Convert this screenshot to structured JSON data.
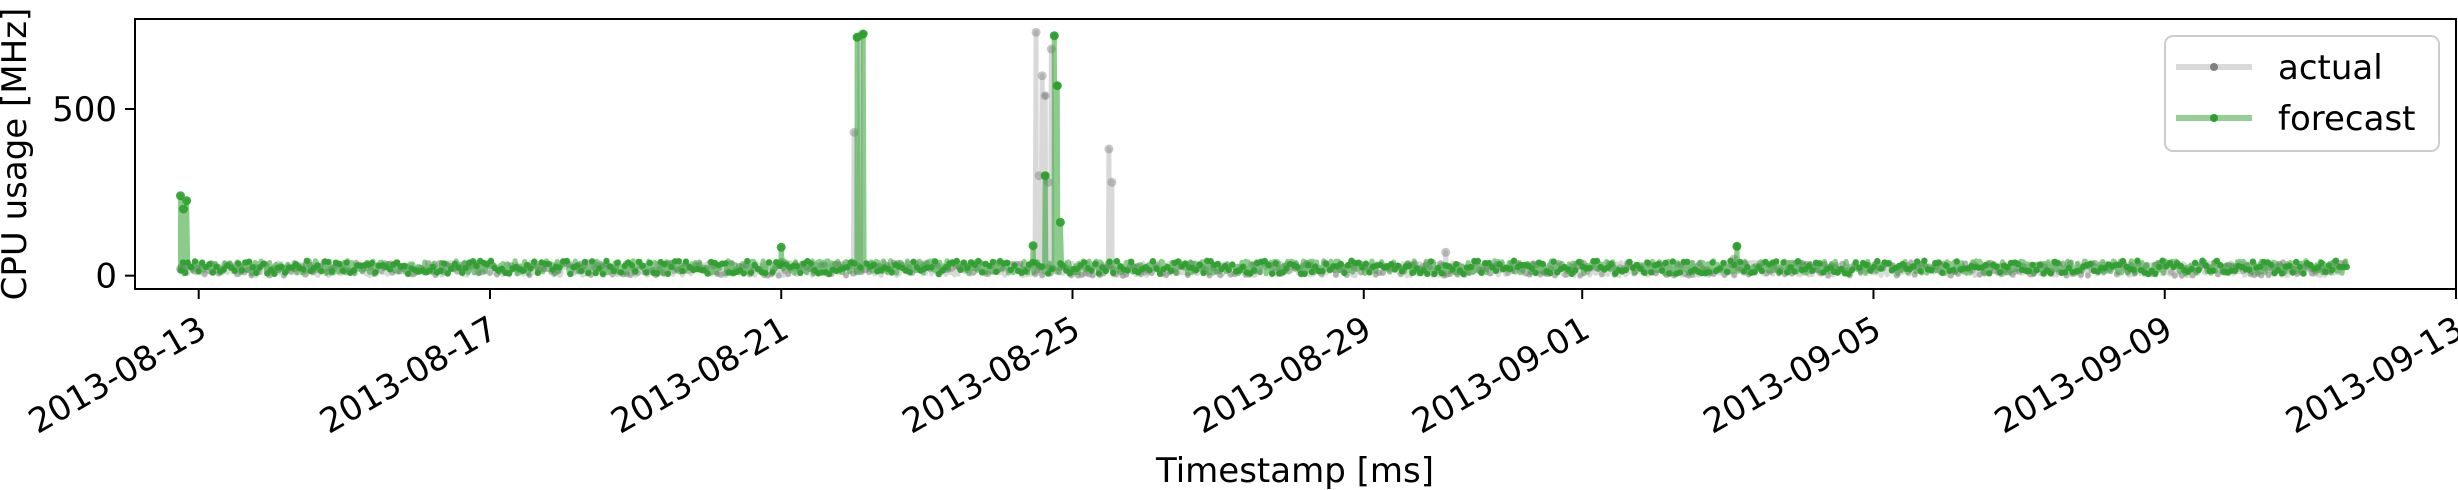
{
  "chart_data": {
    "type": "line",
    "title": "",
    "xlabel": "Timestamp [ms]",
    "ylabel": "CPU usage [MHz]",
    "x_range": [
      "2013-08-12T03:00",
      "2013-09-13T00:00"
    ],
    "ylim": [
      -40,
      770
    ],
    "x_ticks": [
      "2013-08-13",
      "2013-08-17",
      "2013-08-21",
      "2013-08-25",
      "2013-08-29",
      "2013-09-01",
      "2013-09-05",
      "2013-09-09",
      "2013-09-13"
    ],
    "y_ticks": [
      0,
      500
    ],
    "grid": false,
    "legend": {
      "placement": "top-right",
      "entries": [
        "actual",
        "forecast"
      ]
    },
    "series": [
      {
        "name": "actual",
        "color": "#808080",
        "baseline": [
          0,
          40
        ],
        "data_start": "2013-08-12T18:00",
        "data_end": "2013-09-11T12:00",
        "spikes": [
          [
            "2013-08-12T18:00",
            20
          ],
          [
            "2013-08-21T00:00",
            40
          ],
          [
            "2013-08-22T00:00",
            430
          ],
          [
            "2013-08-22T02:00",
            720
          ],
          [
            "2013-08-24T12:00",
            730
          ],
          [
            "2013-08-24T13:00",
            300
          ],
          [
            "2013-08-24T14:00",
            600
          ],
          [
            "2013-08-24T15:00",
            540
          ],
          [
            "2013-08-24T16:00",
            280
          ],
          [
            "2013-08-24T17:00",
            680
          ],
          [
            "2013-08-25T12:00",
            380
          ],
          [
            "2013-08-25T13:00",
            280
          ],
          [
            "2013-08-30T03:00",
            70
          ],
          [
            "2013-09-03T02:00",
            50
          ]
        ]
      },
      {
        "name": "forecast",
        "color": "#2ca02c",
        "baseline": [
          5,
          45
        ],
        "data_start": "2013-08-12T18:00",
        "data_end": "2013-09-11T12:00",
        "spikes": [
          [
            "2013-08-12T18:00",
            240
          ],
          [
            "2013-08-12T19:00",
            200
          ],
          [
            "2013-08-12T20:00",
            225
          ],
          [
            "2013-08-21T00:00",
            85
          ],
          [
            "2013-08-22T01:00",
            715
          ],
          [
            "2013-08-22T03:00",
            725
          ],
          [
            "2013-08-24T11:00",
            90
          ],
          [
            "2013-08-24T15:00",
            300
          ],
          [
            "2013-08-24T18:00",
            720
          ],
          [
            "2013-08-24T19:00",
            570
          ],
          [
            "2013-08-24T20:00",
            160
          ],
          [
            "2013-09-03T03:00",
            88
          ]
        ]
      }
    ]
  }
}
